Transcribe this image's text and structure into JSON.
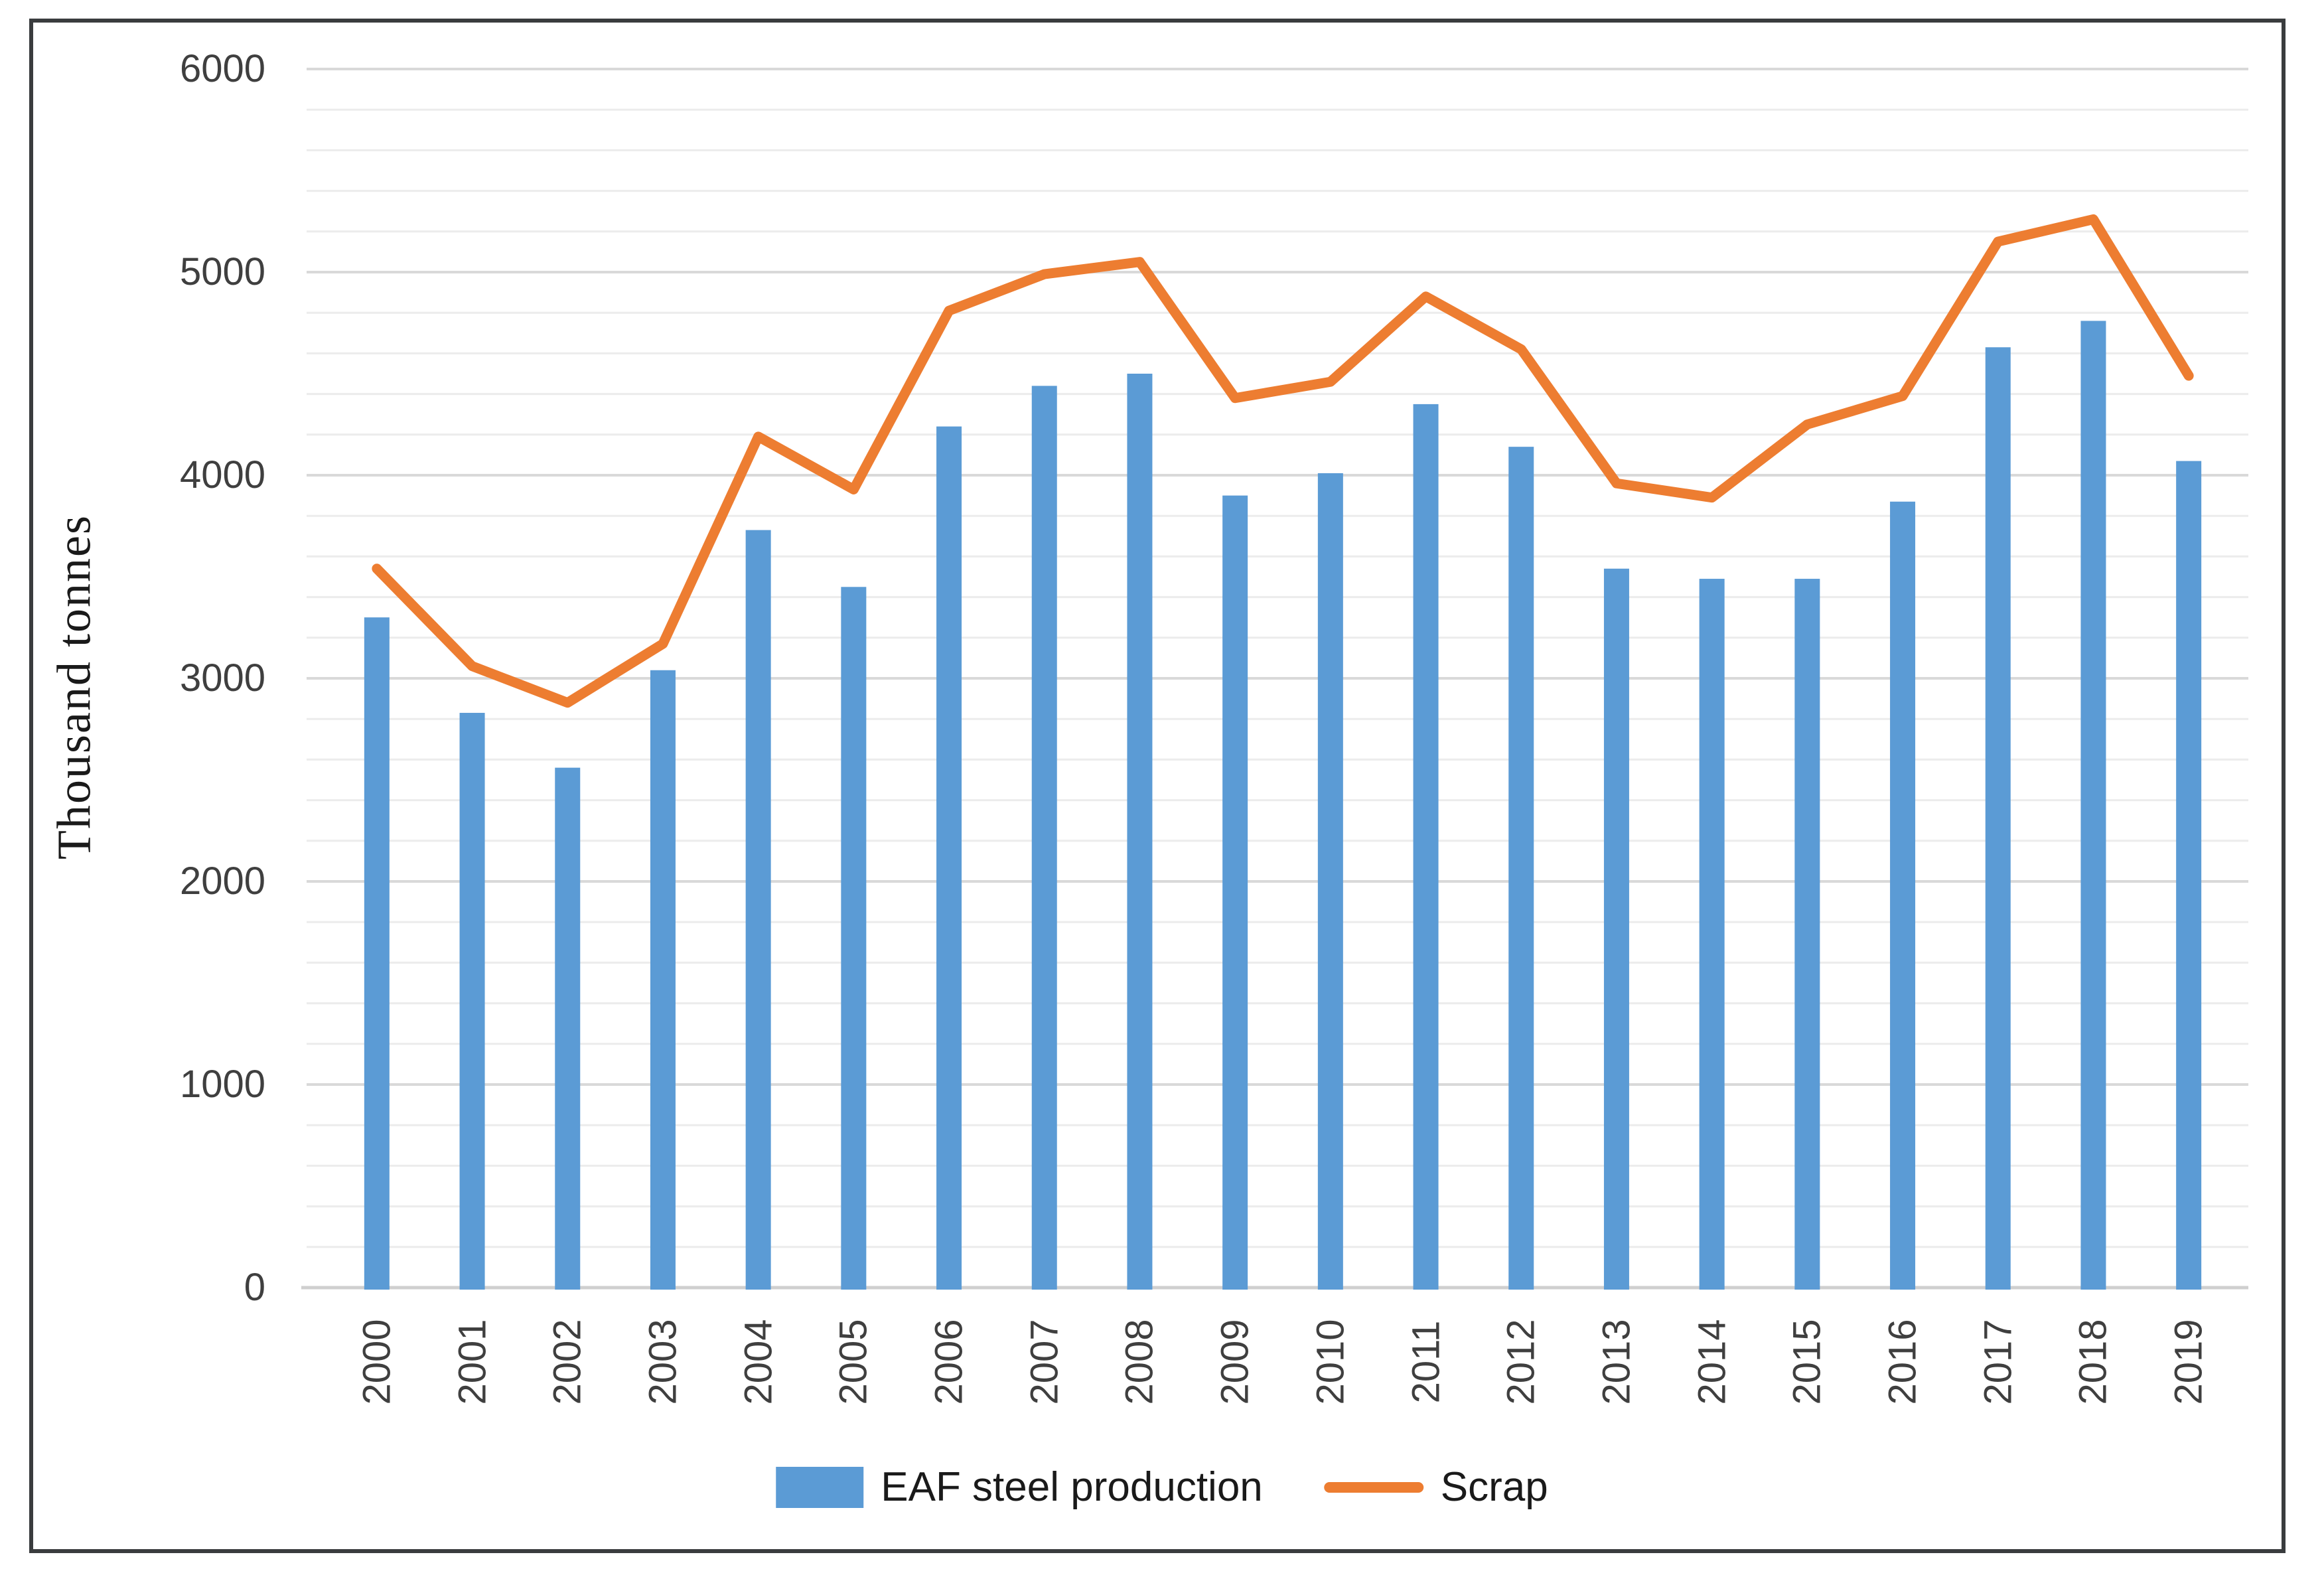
{
  "chart_data": {
    "type": "bar",
    "subtype": "bar-and-line-combo",
    "categories": [
      "2000",
      "2001",
      "2002",
      "2003",
      "2004",
      "2005",
      "2006",
      "2007",
      "2008",
      "2009",
      "2010",
      "2011",
      "2012",
      "2013",
      "2014",
      "2015",
      "2016",
      "2017",
      "2018",
      "2019"
    ],
    "series": [
      {
        "name": "EAF steel production",
        "type": "bar",
        "color": "#5B9BD5",
        "values": [
          3300,
          2830,
          2560,
          3040,
          3730,
          3450,
          4240,
          4440,
          4500,
          3900,
          4010,
          4350,
          4140,
          3540,
          3490,
          3490,
          3870,
          4630,
          4760,
          4070
        ]
      },
      {
        "name": "Scrap",
        "type": "line",
        "color": "#ED7D31",
        "values": [
          3540,
          3060,
          2880,
          3170,
          4190,
          3930,
          4810,
          4990,
          5050,
          4380,
          4460,
          4880,
          4620,
          3960,
          3890,
          4250,
          4390,
          5150,
          5260,
          4490
        ]
      }
    ],
    "title": "",
    "xlabel": "",
    "ylabel": "Thousand  tonnes",
    "ylim": [
      0,
      6000
    ],
    "y_major_step": 1000,
    "y_minor_step": 200,
    "y_tick_labels": [
      "0",
      "1000",
      "2000",
      "3000",
      "4000",
      "5000",
      "6000"
    ],
    "grid": true,
    "legend_position": "bottom"
  },
  "legend": {
    "items": [
      {
        "label": "EAF steel production",
        "swatch": "bar-swatch"
      },
      {
        "label": "Scrap",
        "swatch": "line-swatch"
      }
    ]
  },
  "colors": {
    "bar_fill": "#5B9BD5",
    "line_stroke": "#ED7D31",
    "minor_gridline": "#ececec",
    "major_gridline": "#d9d9d9",
    "axis_line": "#cfcfcf",
    "tick_text": "#3f3f3f",
    "frame_border": "#3a3c3e",
    "background": "#ffffff"
  }
}
